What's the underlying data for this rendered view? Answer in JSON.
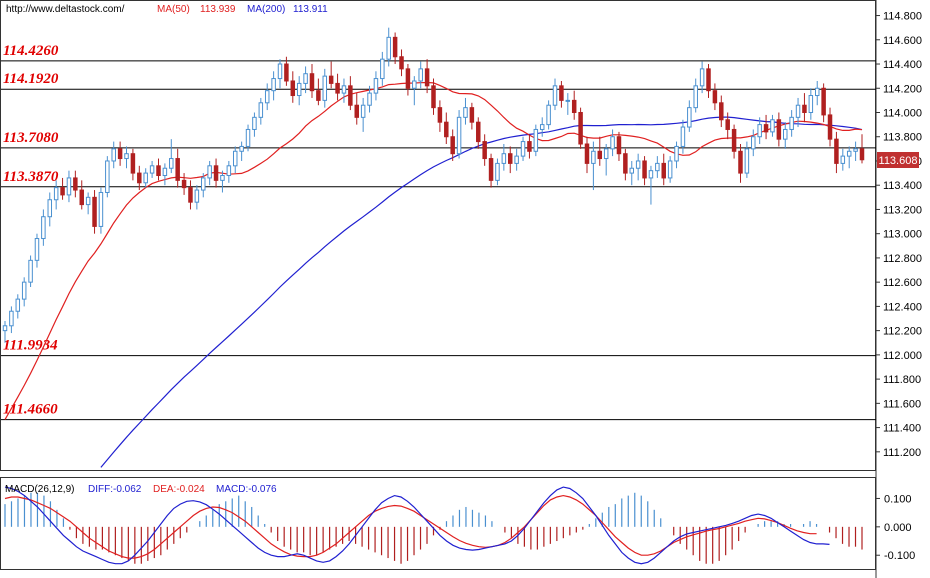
{
  "header": {
    "source": "http://www.deltastock.com/",
    "ma50_label": "MA(50)",
    "ma50_value": "113.939",
    "ma200_label": "MA(200)",
    "ma200_value": "113.911"
  },
  "macd_header": {
    "title": "MACD(26,12,9)",
    "diff": "DIFF:-0.062",
    "dea": "DEA:-0.024",
    "macd": "MACD:-0.076"
  },
  "colors": {
    "up": "#4a90d0",
    "down": "#b02020",
    "ma50": "#e02020",
    "ma200": "#2020d0",
    "level_label": "#e00000",
    "current_bg": "#c03030"
  },
  "chart_data": {
    "type": "candlestick",
    "price_axis": {
      "ticks": [
        "114.800",
        "114.600",
        "114.400",
        "114.200",
        "114.000",
        "113.800",
        "113.600",
        "113.400",
        "113.200",
        "113.000",
        "112.800",
        "112.600",
        "112.400",
        "112.200",
        "112.000",
        "111.800",
        "111.600",
        "111.400",
        "111.200"
      ],
      "ylim": [
        111.05,
        114.92
      ]
    },
    "levels": [
      "114.4260",
      "114.1920",
      "113.7080",
      "113.3870",
      "111.9934",
      "111.4660"
    ],
    "current_price": "113.608",
    "macd_axis": {
      "ticks": [
        "0.100",
        "0.000",
        "-0.100"
      ],
      "ylim": [
        -0.145,
        0.165
      ]
    },
    "candles": [
      [
        112.2,
        112.28,
        112.1,
        112.24
      ],
      [
        112.24,
        112.4,
        112.18,
        112.36
      ],
      [
        112.36,
        112.5,
        112.3,
        112.46
      ],
      [
        112.46,
        112.64,
        112.4,
        112.6
      ],
      [
        112.6,
        112.82,
        112.56,
        112.78
      ],
      [
        112.78,
        113.0,
        112.72,
        112.96
      ],
      [
        112.96,
        113.2,
        112.9,
        113.14
      ],
      [
        113.14,
        113.34,
        113.06,
        113.28
      ],
      [
        113.28,
        113.44,
        113.2,
        113.38
      ],
      [
        113.38,
        113.46,
        113.28,
        113.32
      ],
      [
        113.32,
        113.52,
        113.26,
        113.46
      ],
      [
        113.46,
        113.52,
        113.3,
        113.36
      ],
      [
        113.36,
        113.44,
        113.2,
        113.24
      ],
      [
        113.24,
        113.34,
        113.16,
        113.3
      ],
      [
        113.3,
        113.36,
        113.0,
        113.06
      ],
      [
        113.06,
        113.38,
        113.0,
        113.34
      ],
      [
        113.34,
        113.64,
        113.3,
        113.6
      ],
      [
        113.6,
        113.76,
        113.54,
        113.7
      ],
      [
        113.7,
        113.76,
        113.56,
        113.62
      ],
      [
        113.62,
        113.72,
        113.54,
        113.66
      ],
      [
        113.66,
        113.7,
        113.44,
        113.5
      ],
      [
        113.5,
        113.56,
        113.36,
        113.42
      ],
      [
        113.42,
        113.54,
        113.38,
        113.5
      ],
      [
        113.5,
        113.6,
        113.46,
        113.56
      ],
      [
        113.56,
        113.62,
        113.44,
        113.48
      ],
      [
        113.48,
        113.58,
        113.4,
        113.54
      ],
      [
        113.54,
        113.78,
        113.5,
        113.62
      ],
      [
        113.62,
        113.7,
        113.38,
        113.44
      ],
      [
        113.44,
        113.5,
        113.32,
        113.38
      ],
      [
        113.38,
        113.44,
        113.2,
        113.26
      ],
      [
        113.26,
        113.4,
        113.2,
        113.36
      ],
      [
        113.36,
        113.5,
        113.3,
        113.46
      ],
      [
        113.46,
        113.6,
        113.4,
        113.56
      ],
      [
        113.56,
        113.62,
        113.38,
        113.44
      ],
      [
        113.44,
        113.52,
        113.34,
        113.48
      ],
      [
        113.48,
        113.6,
        113.42,
        113.56
      ],
      [
        113.56,
        113.72,
        113.5,
        113.68
      ],
      [
        113.68,
        113.76,
        113.6,
        113.72
      ],
      [
        113.72,
        113.9,
        113.68,
        113.86
      ],
      [
        113.86,
        114.0,
        113.8,
        113.96
      ],
      [
        113.96,
        114.12,
        113.9,
        114.08
      ],
      [
        114.08,
        114.24,
        114.02,
        114.18
      ],
      [
        114.18,
        114.34,
        114.1,
        114.28
      ],
      [
        114.28,
        114.44,
        114.2,
        114.4
      ],
      [
        114.4,
        114.46,
        114.22,
        114.26
      ],
      [
        114.26,
        114.34,
        114.08,
        114.14
      ],
      [
        114.14,
        114.3,
        114.06,
        114.24
      ],
      [
        114.24,
        114.38,
        114.16,
        114.32
      ],
      [
        114.32,
        114.4,
        114.12,
        114.18
      ],
      [
        114.18,
        114.28,
        114.06,
        114.1
      ],
      [
        114.1,
        114.36,
        114.04,
        114.3
      ],
      [
        114.3,
        114.42,
        114.2,
        114.24
      ],
      [
        114.24,
        114.32,
        114.1,
        114.16
      ],
      [
        114.16,
        114.28,
        114.08,
        114.22
      ],
      [
        114.22,
        114.3,
        114.02,
        114.06
      ],
      [
        114.06,
        114.16,
        113.9,
        113.96
      ],
      [
        113.96,
        114.12,
        113.84,
        114.06
      ],
      [
        114.06,
        114.22,
        114.0,
        114.16
      ],
      [
        114.16,
        114.34,
        114.1,
        114.28
      ],
      [
        114.28,
        114.5,
        114.22,
        114.44
      ],
      [
        114.44,
        114.7,
        114.38,
        114.62
      ],
      [
        114.62,
        114.66,
        114.4,
        114.46
      ],
      [
        114.46,
        114.52,
        114.3,
        114.36
      ],
      [
        114.36,
        114.4,
        114.14,
        114.2
      ],
      [
        114.2,
        114.3,
        114.06,
        114.26
      ],
      [
        114.26,
        114.42,
        114.2,
        114.36
      ],
      [
        114.36,
        114.44,
        114.16,
        114.22
      ],
      [
        114.22,
        114.28,
        113.98,
        114.04
      ],
      [
        114.04,
        114.1,
        113.84,
        113.92
      ],
      [
        113.92,
        114.0,
        113.74,
        113.8
      ],
      [
        113.8,
        113.86,
        113.6,
        113.66
      ],
      [
        113.66,
        114.02,
        113.62,
        113.96
      ],
      [
        113.96,
        114.12,
        113.9,
        114.04
      ],
      [
        114.04,
        114.08,
        113.86,
        113.92
      ],
      [
        113.92,
        113.96,
        113.7,
        113.76
      ],
      [
        113.76,
        113.82,
        113.56,
        113.62
      ],
      [
        113.62,
        113.66,
        113.38,
        113.44
      ],
      [
        113.44,
        113.62,
        113.4,
        113.58
      ],
      [
        113.58,
        113.74,
        113.52,
        113.66
      ],
      [
        113.66,
        113.72,
        113.5,
        113.58
      ],
      [
        113.58,
        113.7,
        113.52,
        113.64
      ],
      [
        113.64,
        113.8,
        113.6,
        113.76
      ],
      [
        113.76,
        113.82,
        113.62,
        113.68
      ],
      [
        113.68,
        113.9,
        113.64,
        113.86
      ],
      [
        113.86,
        113.96,
        113.8,
        113.9
      ],
      [
        113.9,
        114.1,
        113.86,
        114.06
      ],
      [
        114.06,
        114.28,
        114.02,
        114.22
      ],
      [
        114.22,
        114.26,
        114.04,
        114.1
      ],
      [
        114.1,
        114.16,
        113.98,
        114.1
      ],
      [
        114.1,
        114.18,
        113.94,
        114.0
      ],
      [
        114.0,
        114.04,
        113.7,
        113.74
      ],
      [
        113.74,
        113.8,
        113.5,
        113.58
      ],
      [
        113.58,
        113.76,
        113.36,
        113.68
      ],
      [
        113.68,
        113.8,
        113.56,
        113.62
      ],
      [
        113.62,
        113.74,
        113.48,
        113.7
      ],
      [
        113.7,
        113.86,
        113.64,
        113.8
      ],
      [
        113.8,
        113.84,
        113.6,
        113.66
      ],
      [
        113.66,
        113.7,
        113.44,
        113.5
      ],
      [
        113.5,
        113.6,
        113.4,
        113.54
      ],
      [
        113.54,
        113.66,
        113.44,
        113.6
      ],
      [
        113.6,
        113.64,
        113.4,
        113.46
      ],
      [
        113.46,
        113.56,
        113.24,
        113.52
      ],
      [
        113.52,
        113.64,
        113.46,
        113.58
      ],
      [
        113.58,
        113.66,
        113.4,
        113.46
      ],
      [
        113.46,
        113.64,
        113.42,
        113.6
      ],
      [
        113.6,
        113.76,
        113.54,
        113.72
      ],
      [
        113.72,
        113.94,
        113.66,
        113.88
      ],
      [
        113.88,
        114.1,
        113.84,
        114.04
      ],
      [
        114.04,
        114.28,
        114.0,
        114.22
      ],
      [
        114.22,
        114.42,
        114.16,
        114.36
      ],
      [
        114.36,
        114.4,
        114.12,
        114.18
      ],
      [
        114.18,
        114.24,
        114.02,
        114.08
      ],
      [
        114.08,
        114.14,
        113.88,
        113.94
      ],
      [
        113.94,
        114.0,
        113.78,
        113.86
      ],
      [
        113.86,
        113.9,
        113.62,
        113.68
      ],
      [
        113.68,
        113.74,
        113.42,
        113.5
      ],
      [
        113.5,
        113.76,
        113.46,
        113.7
      ],
      [
        113.7,
        113.86,
        113.64,
        113.8
      ],
      [
        113.8,
        113.96,
        113.74,
        113.9
      ],
      [
        113.9,
        113.98,
        113.78,
        113.84
      ],
      [
        113.84,
        113.98,
        113.8,
        113.94
      ],
      [
        113.94,
        114.0,
        113.72,
        113.78
      ],
      [
        113.78,
        113.92,
        113.7,
        113.86
      ],
      [
        113.86,
        114.02,
        113.8,
        113.96
      ],
      [
        113.96,
        114.12,
        113.88,
        114.06
      ],
      [
        114.06,
        114.16,
        113.92,
        114.0
      ],
      [
        114.0,
        114.2,
        113.94,
        114.14
      ],
      [
        114.14,
        114.26,
        114.06,
        114.2
      ],
      [
        114.2,
        114.24,
        113.92,
        113.98
      ],
      [
        113.98,
        114.04,
        113.72,
        113.78
      ],
      [
        113.78,
        113.84,
        113.5,
        113.58
      ],
      [
        113.58,
        113.7,
        113.52,
        113.64
      ],
      [
        113.64,
        113.72,
        113.54,
        113.68
      ],
      [
        113.68,
        113.76,
        113.6,
        113.7
      ],
      [
        113.7,
        113.82,
        113.58,
        113.61
      ]
    ],
    "macd_hist": [
      0.08,
      0.09,
      0.1,
      0.11,
      0.12,
      0.12,
      0.11,
      0.09,
      0.06,
      0.03,
      -0.01,
      -0.04,
      -0.06,
      -0.07,
      -0.08,
      -0.08,
      -0.09,
      -0.1,
      -0.11,
      -0.12,
      -0.13,
      -0.13,
      -0.12,
      -0.11,
      -0.1,
      -0.08,
      -0.06,
      -0.04,
      -0.02,
      0.0,
      0.02,
      0.04,
      0.06,
      0.08,
      0.09,
      0.1,
      0.11,
      0.09,
      0.07,
      0.04,
      0.01,
      -0.02,
      -0.05,
      -0.07,
      -0.08,
      -0.09,
      -0.09,
      -0.1,
      -0.1,
      -0.09,
      -0.08,
      -0.07,
      -0.06,
      -0.05,
      -0.06,
      -0.07,
      -0.08,
      -0.09,
      -0.1,
      -0.11,
      -0.12,
      -0.13,
      -0.12,
      -0.1,
      -0.08,
      -0.06,
      -0.03,
      -0.01,
      0.02,
      0.04,
      0.06,
      0.07,
      0.06,
      0.05,
      0.04,
      0.02,
      0.0,
      -0.02,
      -0.04,
      -0.06,
      -0.07,
      -0.08,
      -0.08,
      -0.07,
      -0.06,
      -0.05,
      -0.04,
      -0.03,
      -0.02,
      -0.01,
      0.01,
      0.03,
      0.05,
      0.07,
      0.08,
      0.1,
      0.11,
      0.12,
      0.11,
      0.09,
      0.06,
      0.03,
      0.0,
      -0.03,
      -0.06,
      -0.08,
      -0.1,
      -0.12,
      -0.13,
      -0.13,
      -0.12,
      -0.1,
      -0.08,
      -0.05,
      -0.02,
      0.0,
      0.01,
      0.02,
      0.02,
      0.02,
      0.01,
      0.01,
      0.0,
      0.01,
      0.02,
      0.01,
      0.0,
      -0.02,
      -0.04,
      -0.06,
      -0.07,
      -0.07,
      -0.08
    ],
    "macd_diff": [
      0.14,
      0.135,
      0.125,
      0.11,
      0.09,
      0.07,
      0.045,
      0.02,
      -0.005,
      -0.03,
      -0.05,
      -0.07,
      -0.085,
      -0.095,
      -0.105,
      -0.115,
      -0.125,
      -0.13,
      -0.13,
      -0.12,
      -0.1,
      -0.075,
      -0.05,
      -0.02,
      0.01,
      0.04,
      0.065,
      0.08,
      0.09,
      0.092,
      0.088,
      0.078,
      0.062,
      0.045,
      0.025,
      0.005,
      -0.015,
      -0.035,
      -0.055,
      -0.075,
      -0.09,
      -0.1,
      -0.105,
      -0.105,
      -0.1,
      -0.095,
      -0.1,
      -0.11,
      -0.12,
      -0.125,
      -0.12,
      -0.105,
      -0.085,
      -0.06,
      -0.03,
      0.0,
      0.03,
      0.06,
      0.085,
      0.1,
      0.11,
      0.105,
      0.09,
      0.07,
      0.045,
      0.02,
      -0.005,
      -0.03,
      -0.05,
      -0.065,
      -0.075,
      -0.08,
      -0.082,
      -0.08,
      -0.075,
      -0.07,
      -0.065,
      -0.06,
      -0.05,
      -0.03,
      -0.005,
      0.025,
      0.055,
      0.085,
      0.11,
      0.13,
      0.14,
      0.135,
      0.12,
      0.1,
      0.07,
      0.04,
      0.005,
      -0.03,
      -0.06,
      -0.09,
      -0.11,
      -0.125,
      -0.13,
      -0.125,
      -0.11,
      -0.09,
      -0.07,
      -0.05,
      -0.035,
      -0.025,
      -0.02,
      -0.015,
      -0.01,
      -0.005,
      0.0,
      0.005,
      0.012,
      0.02,
      0.03,
      0.04,
      0.045,
      0.04,
      0.03,
      0.015,
      0.0,
      -0.015,
      -0.03,
      -0.045,
      -0.055,
      -0.06,
      -0.06,
      -0.062
    ],
    "macd_dea": [
      0.1,
      0.105,
      0.105,
      0.1,
      0.095,
      0.085,
      0.075,
      0.065,
      0.05,
      0.035,
      0.02,
      0.0,
      -0.02,
      -0.04,
      -0.055,
      -0.07,
      -0.085,
      -0.095,
      -0.105,
      -0.11,
      -0.11,
      -0.105,
      -0.095,
      -0.08,
      -0.06,
      -0.04,
      -0.02,
      0.0,
      0.02,
      0.04,
      0.055,
      0.065,
      0.07,
      0.068,
      0.06,
      0.05,
      0.035,
      0.02,
      0.0,
      -0.02,
      -0.04,
      -0.06,
      -0.075,
      -0.088,
      -0.098,
      -0.103,
      -0.105,
      -0.105,
      -0.1,
      -0.09,
      -0.075,
      -0.06,
      -0.04,
      -0.02,
      0.0,
      0.02,
      0.04,
      0.055,
      0.065,
      0.072,
      0.075,
      0.073,
      0.065,
      0.055,
      0.04,
      0.025,
      0.01,
      -0.005,
      -0.02,
      -0.035,
      -0.048,
      -0.058,
      -0.065,
      -0.07,
      -0.072,
      -0.07,
      -0.065,
      -0.055,
      -0.04,
      -0.02,
      0.0,
      0.025,
      0.05,
      0.075,
      0.095,
      0.105,
      0.11,
      0.105,
      0.095,
      0.08,
      0.06,
      0.04,
      0.015,
      -0.01,
      -0.035,
      -0.055,
      -0.075,
      -0.09,
      -0.1,
      -0.1,
      -0.095,
      -0.085,
      -0.07,
      -0.055,
      -0.045,
      -0.035,
      -0.028,
      -0.022,
      -0.015,
      -0.01,
      -0.006,
      0.0,
      0.006,
      0.012,
      0.02,
      0.025,
      0.03,
      0.028,
      0.022,
      0.015,
      0.005,
      -0.005,
      -0.014,
      -0.02,
      -0.024,
      -0.024
    ]
  }
}
